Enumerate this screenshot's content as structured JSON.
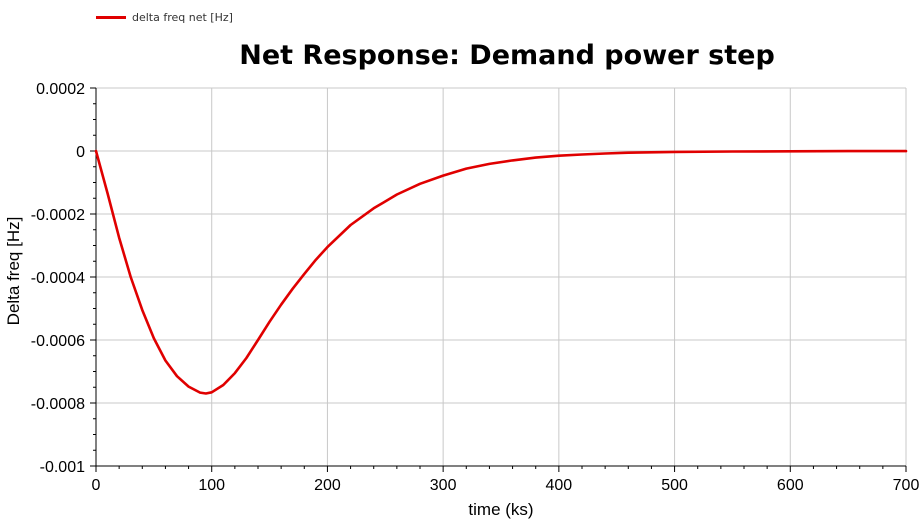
{
  "chart_data": {
    "type": "line",
    "title": "Net Response: Demand power step",
    "xlabel": "time (ks)",
    "ylabel": "Delta freq [Hz]",
    "xlim": [
      0,
      700
    ],
    "ylim": [
      -0.001,
      0.0002
    ],
    "x_ticks": [
      0,
      100,
      200,
      300,
      400,
      500,
      600,
      700
    ],
    "y_ticks": [
      0.0002,
      0,
      -0.0002,
      -0.0004,
      -0.0006,
      -0.0008,
      -0.001
    ],
    "x_tick_labels": [
      "0",
      "100",
      "200",
      "300",
      "400",
      "500",
      "600",
      "700"
    ],
    "y_tick_labels": [
      "0.0002",
      "0",
      "-0.0002",
      "-0.0004",
      "-0.0006",
      "-0.0008",
      "-0.001"
    ],
    "grid": true,
    "legend_position": "top-left",
    "series": [
      {
        "name": "delta freq net [Hz]",
        "color": "#e00000",
        "x": [
          0,
          10,
          20,
          30,
          40,
          50,
          60,
          70,
          80,
          90,
          95,
          100,
          110,
          120,
          130,
          140,
          150,
          160,
          170,
          180,
          190,
          200,
          220,
          240,
          260,
          280,
          300,
          320,
          340,
          360,
          380,
          400,
          420,
          440,
          460,
          480,
          500,
          550,
          600,
          650,
          700
        ],
        "y": [
          0,
          -0.000135,
          -0.000275,
          -0.0004,
          -0.000505,
          -0.000595,
          -0.000665,
          -0.000715,
          -0.000748,
          -0.000767,
          -0.00077,
          -0.000766,
          -0.000743,
          -0.000705,
          -0.000657,
          -0.0006,
          -0.000542,
          -0.000488,
          -0.000437,
          -0.00039,
          -0.000345,
          -0.000305,
          -0.000235,
          -0.000182,
          -0.000138,
          -0.000104,
          -7.8e-05,
          -5.6e-05,
          -4.1e-05,
          -3e-05,
          -2.1e-05,
          -1.5e-05,
          -1.1e-05,
          -8e-06,
          -5.5e-06,
          -4e-06,
          -3e-06,
          -1.5e-06,
          -8e-07,
          -4e-07,
          -2e-07
        ]
      }
    ]
  }
}
